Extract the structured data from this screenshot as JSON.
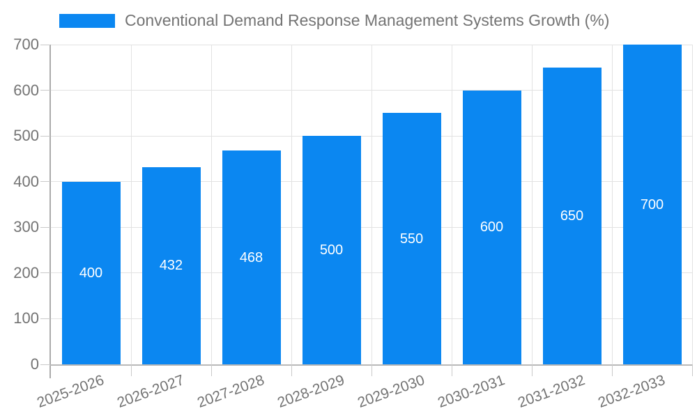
{
  "legend": {
    "label": "Conventional Demand Response Management Systems Growth (%)"
  },
  "chart_data": {
    "type": "bar",
    "title": "Conventional Demand Response Management Systems Growth (%)",
    "categories": [
      "2025-2026",
      "2026-2027",
      "2027-2028",
      "2028-2029",
      "2029-2030",
      "2030-2031",
      "2031-2032",
      "2032-2033"
    ],
    "values": [
      400,
      432,
      468,
      500,
      550,
      600,
      650,
      700
    ],
    "xlabel": "",
    "ylabel": "",
    "ylim": [
      0,
      700
    ],
    "yticks": [
      0,
      100,
      200,
      300,
      400,
      500,
      600,
      700
    ],
    "grid": true,
    "legend_position": "top-left",
    "bar_labels_inside": true
  },
  "colors": {
    "bar": "#0b87f1",
    "bar_label": "#ffffff",
    "axis_text": "#737373",
    "gridline": "#e2e2e2",
    "axis_line": "#ababab",
    "tick": "#c9c9c9",
    "background": "#ffffff"
  }
}
